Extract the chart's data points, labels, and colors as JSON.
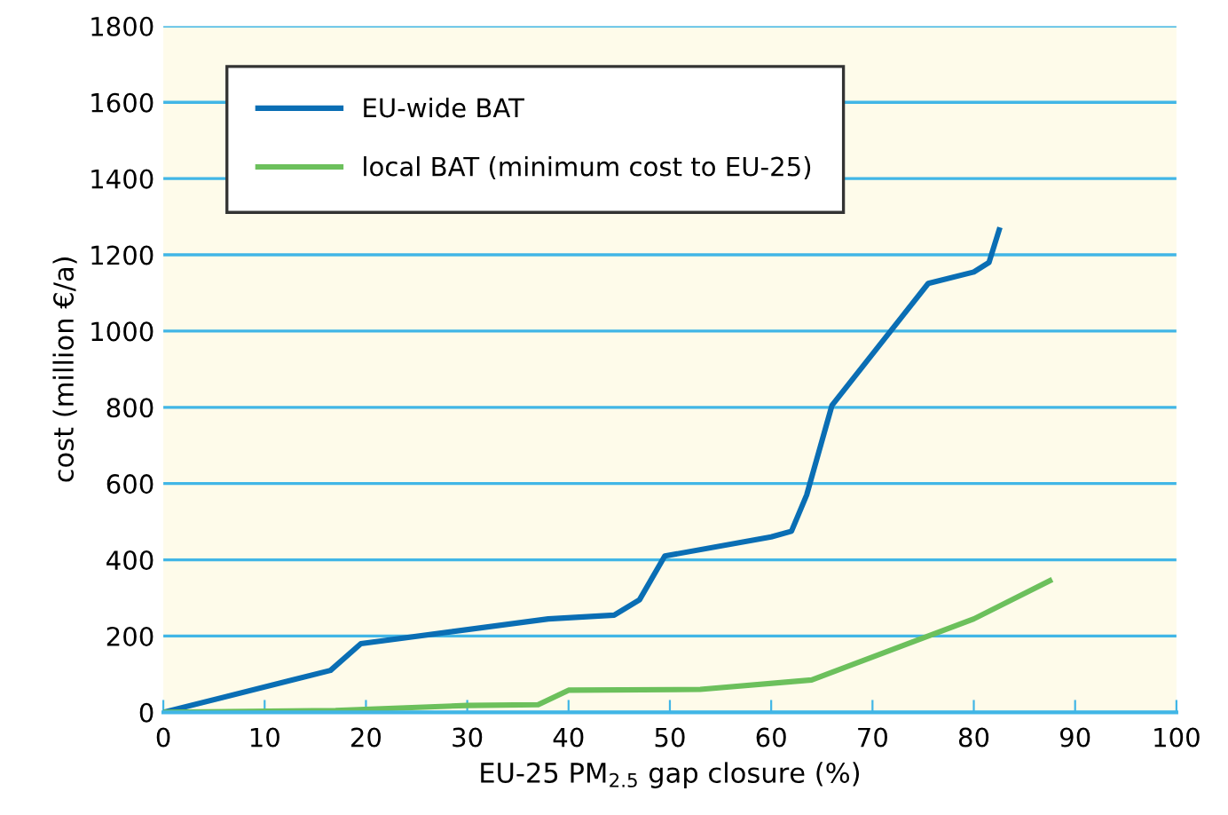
{
  "chart_data": {
    "type": "line",
    "xlabel": "EU-25 PM$_{2.5}$ gap closure (%)",
    "ylabel": "cost (million €/a)",
    "xlim": [
      0,
      100
    ],
    "xticks": [
      0,
      10,
      20,
      30,
      40,
      50,
      60,
      70,
      80,
      90,
      100
    ],
    "ylim": [
      0,
      1800
    ],
    "yticks": [
      0,
      200,
      400,
      600,
      800,
      1000,
      1200,
      1400,
      1600,
      1800
    ],
    "grid": "y",
    "legend": "top left",
    "marker": "none",
    "line_style": "solid",
    "series": [
      {
        "name": "EU-wide BAT",
        "color": "#0a6eb4",
        "x": [
          0,
          16.5,
          19.5,
          38,
          44.5,
          47,
          49.5,
          60,
          62,
          63.5,
          66,
          75.5,
          80,
          81.5,
          82.5
        ],
        "values": [
          0,
          110,
          180,
          245,
          255,
          295,
          410,
          460,
          475,
          570,
          805,
          1125,
          1155,
          1180,
          1265
        ]
      },
      {
        "name": "local BAT (minimum cost to EU-25)",
        "color": "#6cc05c",
        "x": [
          0,
          17,
          30,
          37,
          40,
          53,
          64,
          80,
          87.5
        ],
        "values": [
          0,
          5,
          18,
          20,
          58,
          60,
          85,
          245,
          345
        ]
      }
    ]
  }
}
